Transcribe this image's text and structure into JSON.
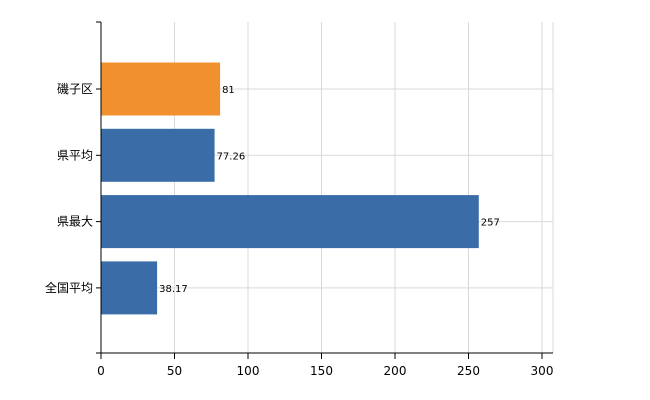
{
  "chart_data": {
    "type": "bar",
    "orientation": "horizontal",
    "categories": [
      "磯子区",
      "県平均",
      "県最大",
      "全国平均"
    ],
    "values": [
      81,
      77.26,
      257,
      38.17
    ],
    "value_labels": [
      "81",
      "77.26",
      "257",
      "38.17"
    ],
    "bar_colors": [
      "#F0902F",
      "#3A6CA8",
      "#3A6CA8",
      "#3A6CA8"
    ],
    "xlim": [
      0,
      300
    ],
    "xticks": [
      0,
      50,
      100,
      150,
      200,
      250,
      300
    ],
    "xtick_labels": [
      "0",
      "50",
      "100",
      "150",
      "200",
      "250",
      "300"
    ],
    "grid": true,
    "title": "",
    "xlabel": "",
    "ylabel": ""
  },
  "colors": {
    "highlight": "#F0902F",
    "default": "#3A6CA8",
    "grid": "#D9D9D9",
    "axis": "#000000"
  }
}
